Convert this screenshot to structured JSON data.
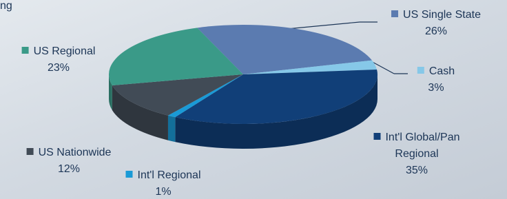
{
  "chart_data": {
    "type": "pie",
    "title": "ng",
    "categories": [
      "US Single State",
      "Cash",
      "Int'l Global/Pan Regional",
      "Int'l Regional",
      "US Nationwide",
      "US Regional"
    ],
    "values": [
      26,
      3,
      35,
      1,
      12,
      23
    ],
    "value_labels": [
      "26%",
      "3%",
      "35%",
      "1%",
      "12%",
      "23%"
    ],
    "colors": [
      "#5b7bb0",
      "#86c8e8",
      "#113f78",
      "#1a9ad6",
      "#414b56",
      "#3a9a88"
    ]
  }
}
